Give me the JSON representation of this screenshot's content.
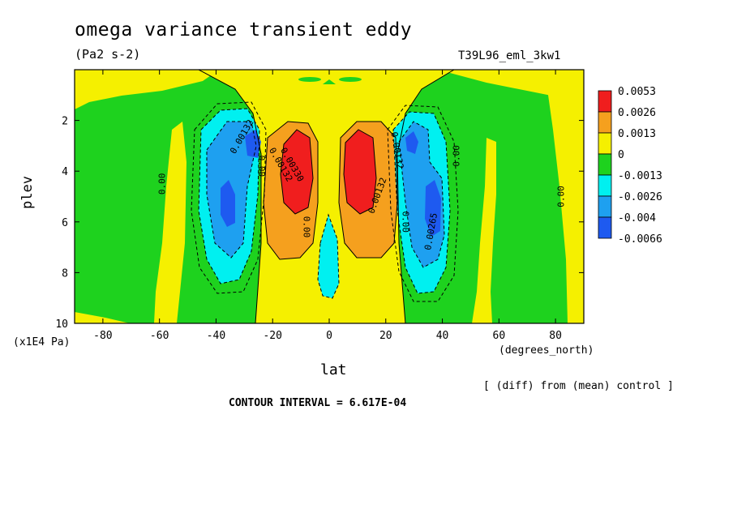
{
  "chart_data": {
    "type": "heatmap",
    "title": "omega variance transient eddy",
    "units": "(Pa2 s-2)",
    "experiment": "T39L96_eml_3kw1",
    "xlabel": "lat",
    "xunits": "(degrees_north)",
    "ylabel": "plev",
    "yunits": "(x1E4 Pa)",
    "xlim": [
      -90,
      90
    ],
    "ylim": [
      10,
      0
    ],
    "x_ticks": [
      "-80",
      "-60",
      "-40",
      "-20",
      "0",
      "20",
      "40",
      "60",
      "80"
    ],
    "y_ticks": [
      "2",
      "4",
      "6",
      "8",
      "10"
    ],
    "colorbar": {
      "labels": [
        "0.0053",
        "0.0026",
        "0.0013",
        "0",
        "-0.0013",
        "-0.0026",
        "-0.004",
        "-0.0066"
      ],
      "colors": [
        "#f01e1e",
        "#f5a01e",
        "#f5f000",
        "#1ed21e",
        "#00f0f0",
        "#1ea0f0",
        "#1e5af0"
      ]
    },
    "contour_labels": [
      "0.00",
      "0.00",
      "0.00",
      "0.00",
      "0.00",
      "0.00",
      "0.00132",
      "0.00132",
      "0.00132",
      "0.00132",
      "0.00265",
      "0.00330"
    ],
    "features": [
      {
        "name": "positive-max-sh",
        "lat": -12,
        "plev": 4.0,
        "level": "0.0053"
      },
      {
        "name": "positive-max-nh",
        "lat": 12,
        "plev": 4.0,
        "level": "0.0053"
      },
      {
        "name": "negative-min-sh",
        "lat": -35,
        "plev": 5.5,
        "level": "-0.004"
      },
      {
        "name": "negative-min-nh",
        "lat": 35,
        "plev": 6.0,
        "level": "-0.004"
      },
      {
        "name": "negative-equator",
        "lat": 0,
        "plev": 8.0,
        "level": "-0.0026"
      }
    ],
    "diff_note": "[ (diff) from (mean) control ]",
    "contour_interval": "CONTOUR INTERVAL = 6.617E-04"
  }
}
